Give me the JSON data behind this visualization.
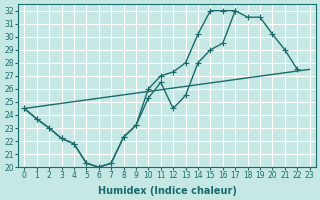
{
  "xlabel": "Humidex (Indice chaleur)",
  "xlim": [
    -0.5,
    23.5
  ],
  "ylim": [
    20,
    32.5
  ],
  "xticks": [
    0,
    1,
    2,
    3,
    4,
    5,
    6,
    7,
    8,
    9,
    10,
    11,
    12,
    13,
    14,
    15,
    16,
    17,
    18,
    19,
    20,
    21,
    22,
    23
  ],
  "yticks": [
    20,
    21,
    22,
    23,
    24,
    25,
    26,
    27,
    28,
    29,
    30,
    31,
    32
  ],
  "line1_x": [
    0,
    1,
    2,
    3,
    4,
    5,
    6,
    7,
    8,
    9,
    10,
    11,
    12,
    13,
    14,
    15,
    16,
    17,
    18,
    19,
    20,
    21,
    22
  ],
  "line1_y": [
    24.5,
    23.7,
    23.0,
    22.2,
    21.8,
    20.3,
    20.0,
    20.3,
    22.3,
    23.2,
    26.0,
    27.0,
    27.3,
    28.0,
    30.2,
    32.0,
    32.0,
    32.0,
    31.5,
    31.5,
    30.2,
    29.0,
    27.5
  ],
  "line2_x": [
    0,
    1,
    2,
    3,
    4,
    5,
    6,
    7,
    8,
    9,
    10,
    11,
    12,
    13,
    14,
    15,
    16,
    17
  ],
  "line2_y": [
    24.5,
    23.7,
    23.0,
    22.2,
    21.8,
    20.3,
    20.0,
    20.3,
    22.3,
    23.2,
    25.3,
    26.5,
    24.5,
    25.5,
    28.0,
    29.0,
    29.5,
    32.0
  ],
  "line3_x": [
    0,
    23
  ],
  "line3_y": [
    24.5,
    27.5
  ],
  "bg_color": "#c5e8e5",
  "grid_color": "#ffffff",
  "line_color": "#1a6b6b",
  "line_width": 1.0,
  "font_size": 7
}
